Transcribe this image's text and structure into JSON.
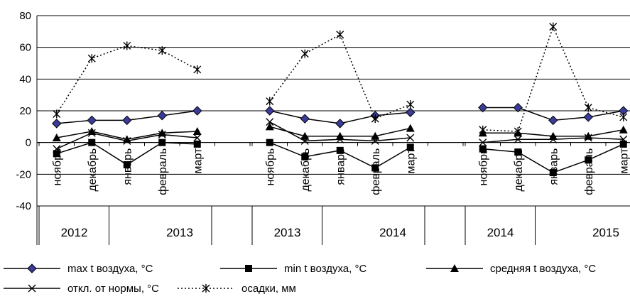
{
  "chart_data": {
    "type": "line",
    "title": "",
    "xlabel": "",
    "ylabel": "",
    "ylim": [
      -40,
      80
    ],
    "yticks": [
      -40,
      -20,
      0,
      20,
      40,
      60,
      80
    ],
    "grid": "horizontal",
    "legend_position": "bottom",
    "groups": [
      {
        "categories": [
          "ноябрь",
          "декабрь",
          "январь",
          "февраль",
          "март"
        ],
        "years": [
          "2012",
          "2013"
        ]
      },
      {
        "categories": [
          "ноябрь",
          "декабрь",
          "январь",
          "февраль",
          "март"
        ],
        "years": [
          "2013",
          "2014"
        ]
      },
      {
        "categories": [
          "ноябрь",
          "декабрь",
          "январь",
          "февраль",
          "март"
        ],
        "years": [
          "2014",
          "2015"
        ]
      }
    ],
    "series": [
      {
        "name": "max t воздуха, °C",
        "marker": "diamond",
        "line": "solid",
        "values": [
          [
            12,
            14,
            14,
            17,
            20
          ],
          [
            20,
            15,
            12,
            17,
            19
          ],
          [
            22,
            22,
            14,
            16,
            20
          ]
        ]
      },
      {
        "name": "min t воздуха, °C",
        "marker": "square",
        "line": "solid",
        "values": [
          [
            -7,
            0,
            -14,
            0,
            -1
          ],
          [
            0,
            -9,
            -5,
            -16,
            -3
          ],
          [
            -4,
            -6,
            -19,
            -11,
            -1
          ]
        ]
      },
      {
        "name": "средняя t воздуха, °C",
        "marker": "triangle",
        "line": "solid",
        "values": [
          [
            3,
            7,
            2,
            6,
            7
          ],
          [
            10,
            4,
            4,
            4,
            9
          ],
          [
            6,
            6,
            4,
            4,
            8
          ]
        ]
      },
      {
        "name": "откл. от нормы, °C",
        "marker": "x",
        "line": "solid",
        "values": [
          [
            -4,
            6,
            1,
            5,
            3
          ],
          [
            13,
            1,
            2,
            1,
            3
          ],
          [
            0,
            2,
            2,
            3,
            2
          ]
        ]
      },
      {
        "name": "осадки, мм",
        "marker": "star",
        "line": "dotted",
        "values": [
          [
            18,
            53,
            61,
            58,
            46
          ],
          [
            26,
            56,
            68,
            15,
            24
          ],
          [
            8,
            7,
            73,
            22,
            16
          ]
        ]
      }
    ]
  }
}
